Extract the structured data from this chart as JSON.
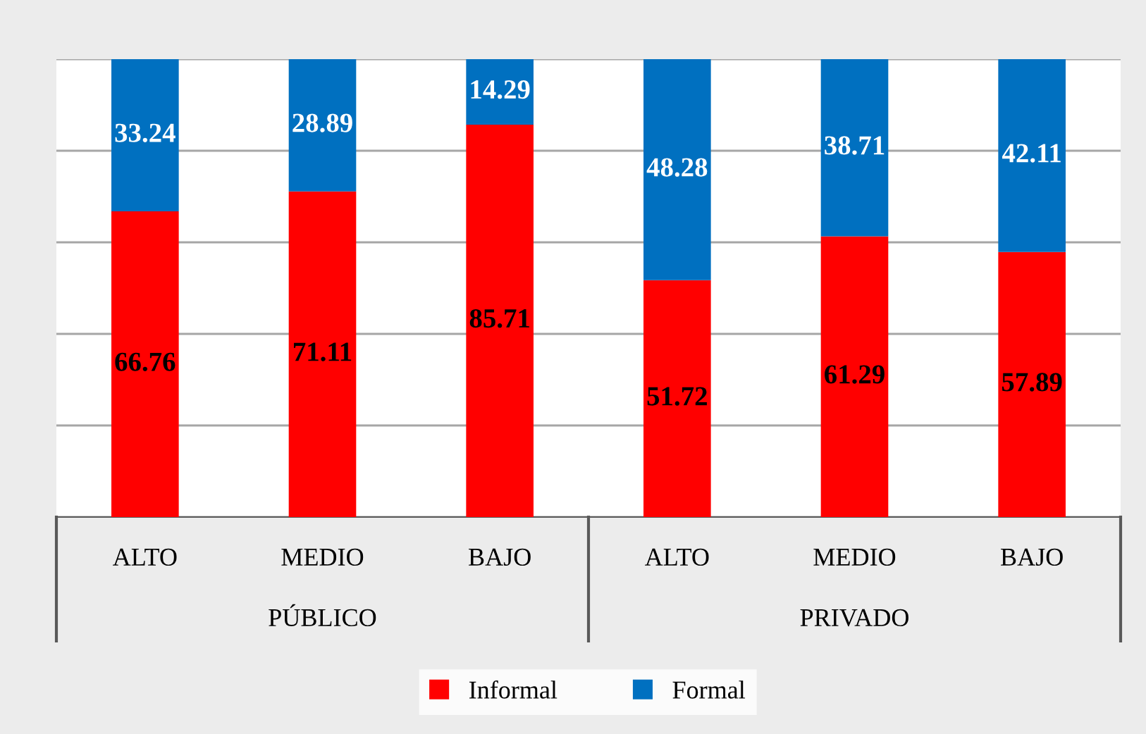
{
  "chart_data": {
    "type": "bar",
    "stacked": true,
    "categories": [
      "ALTO",
      "MEDIO",
      "BAJO",
      "ALTO",
      "MEDIO",
      "BAJO"
    ],
    "series": [
      {
        "name": "Informal",
        "color": "#ff0000",
        "values": [
          66.76,
          71.11,
          85.71,
          51.72,
          61.29,
          57.89
        ]
      },
      {
        "name": "Formal",
        "color": "#0070c0",
        "values": [
          33.24,
          28.89,
          14.29,
          48.28,
          38.71,
          42.11
        ]
      }
    ],
    "annotations": [
      "PÚBLICO",
      "PRIVADO"
    ],
    "ylim": [
      0,
      100
    ],
    "yticks": [
      {
        "value": 0,
        "label": null
      },
      {
        "value": 20,
        "label": null
      },
      {
        "value": 40,
        "label": null
      },
      {
        "value": 60,
        "label": null
      },
      {
        "value": 80,
        "label": null
      },
      {
        "value": 100,
        "label": null
      }
    ],
    "tick_labels": "x",
    "grid": "y",
    "data_labels": true,
    "legend": "bottom"
  }
}
